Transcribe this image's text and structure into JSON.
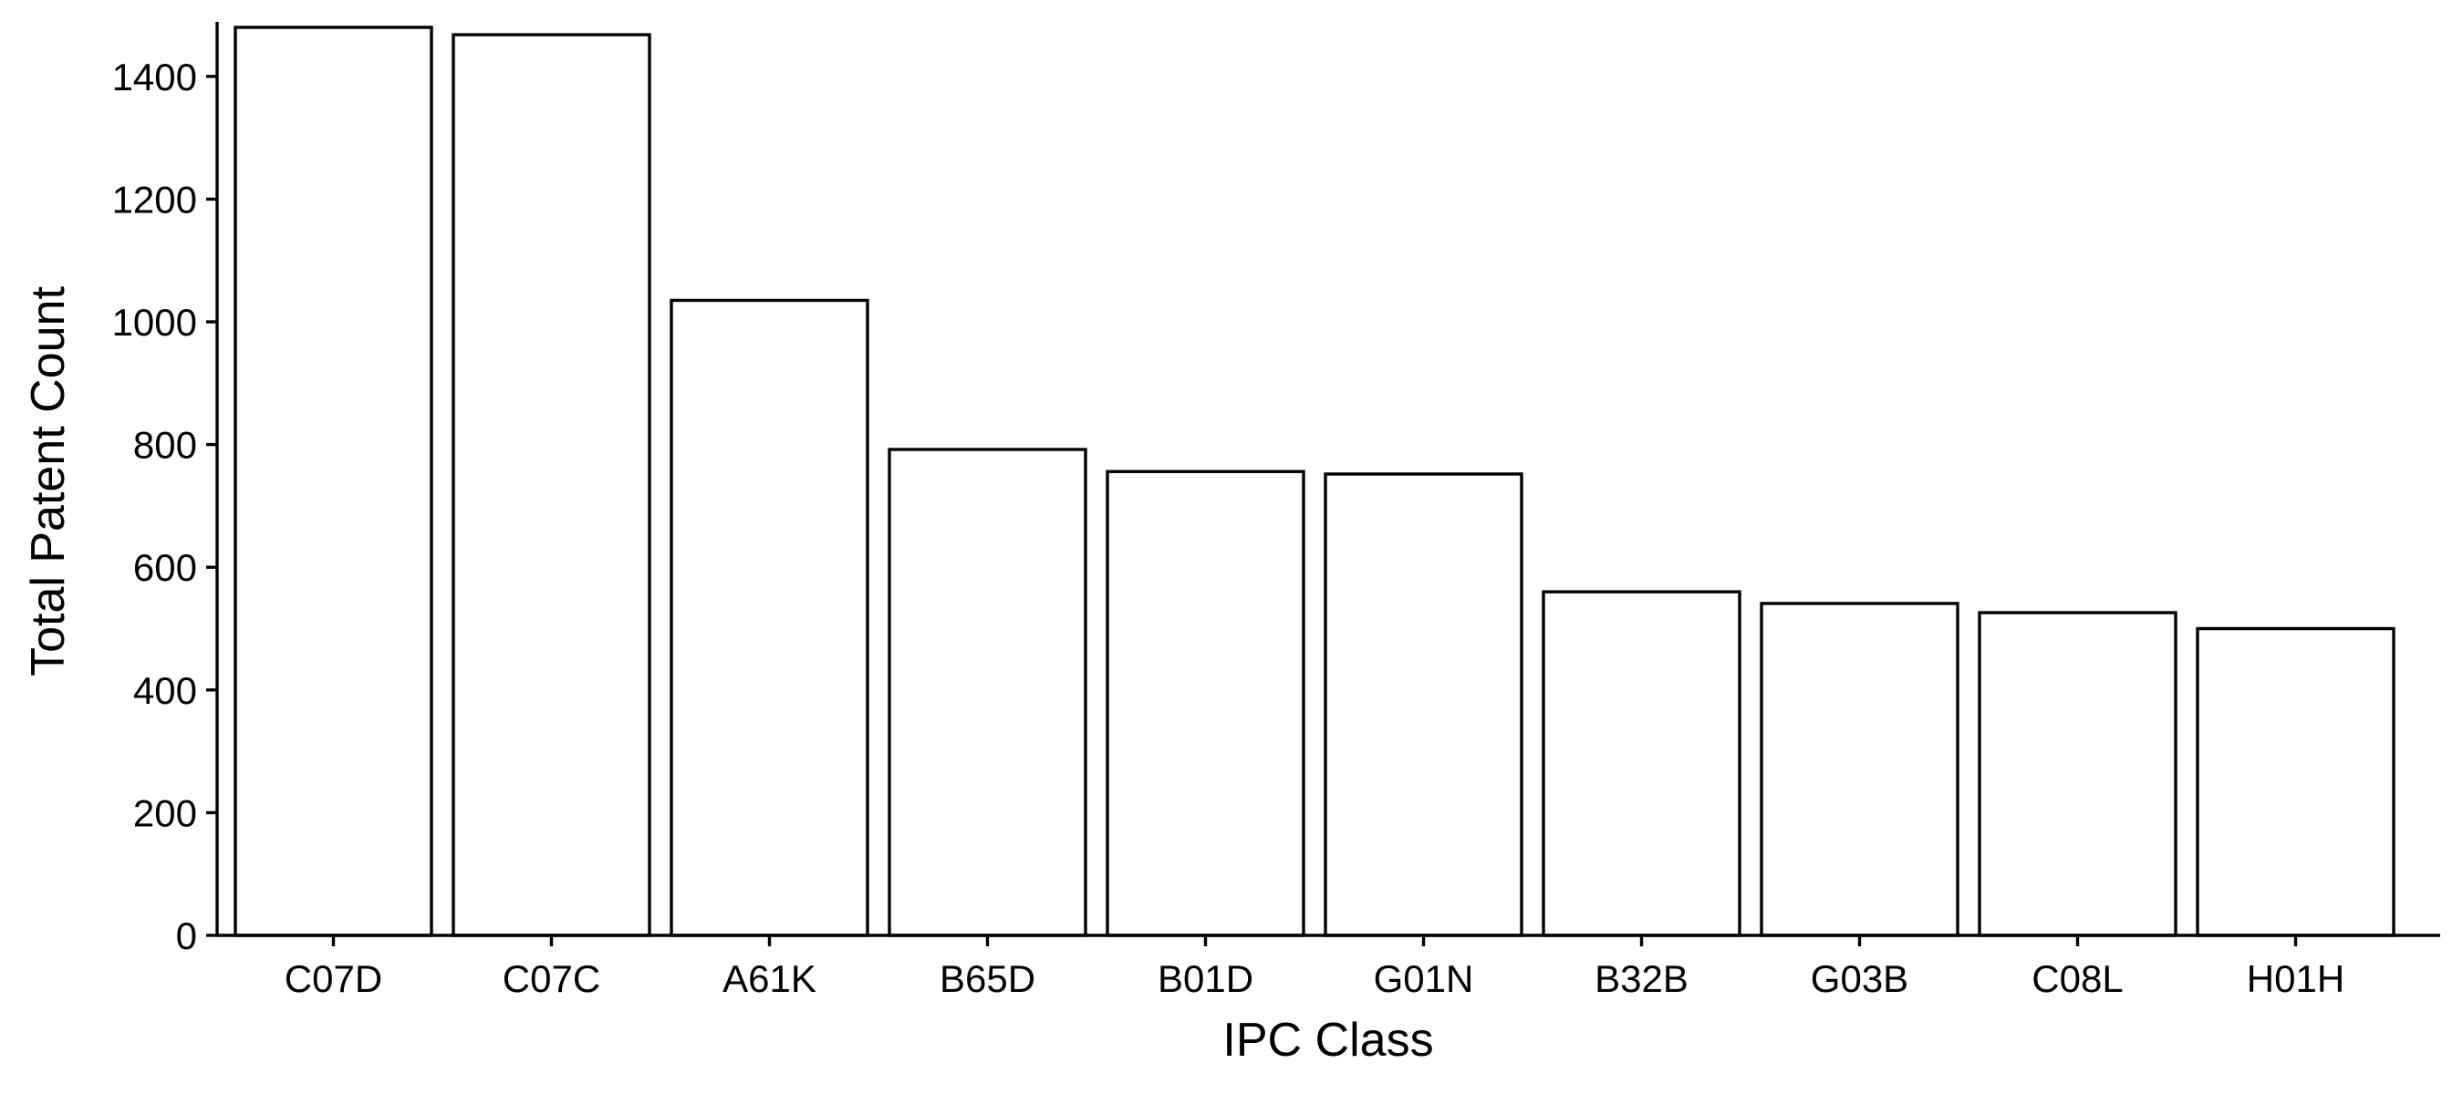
{
  "chart_data": {
    "type": "bar",
    "title": "",
    "xlabel": "IPC Class",
    "ylabel": "Total Patent Count",
    "categories": [
      "C07D",
      "C07C",
      "A61K",
      "B65D",
      "B01D",
      "G01N",
      "B32B",
      "G03B",
      "C08L",
      "H01H"
    ],
    "values": [
      1480,
      1468,
      1035,
      792,
      756,
      752,
      560,
      541,
      526,
      500
    ],
    "y_ticks": [
      0,
      200,
      400,
      600,
      800,
      1000,
      1200,
      1400
    ],
    "ylim": [
      0,
      1480
    ],
    "grid": false,
    "legend": "none",
    "bar_fill": "#ffffff",
    "bar_stroke": "#000000"
  }
}
